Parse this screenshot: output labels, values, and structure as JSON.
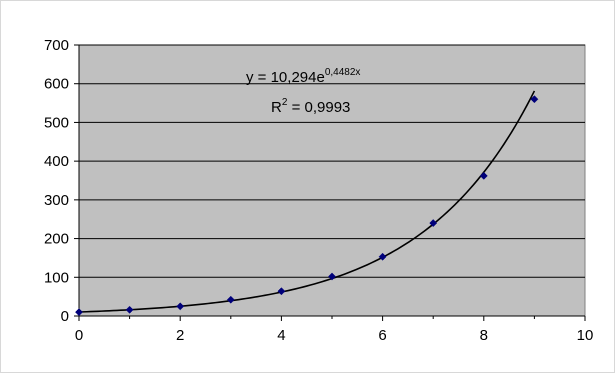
{
  "chart_data": {
    "type": "scatter",
    "title": "",
    "xlabel": "",
    "ylabel": "",
    "xlim": [
      0,
      10
    ],
    "ylim": [
      0,
      700
    ],
    "x_ticks": [
      "0",
      "2",
      "4",
      "6",
      "8",
      "10"
    ],
    "y_ticks": [
      "0",
      "100",
      "200",
      "300",
      "400",
      "500",
      "600",
      "700"
    ],
    "grid": "horizontal",
    "plot_background": "#c0c0c0",
    "series": [
      {
        "x": [
          0,
          1,
          2,
          3,
          4,
          5,
          6,
          7,
          8,
          9
        ],
        "y": [
          10,
          16,
          25,
          42,
          64,
          102,
          153,
          240,
          362,
          560
        ],
        "marker": "diamond",
        "color": "#00007a"
      }
    ],
    "trendline": {
      "type": "exponential",
      "a": 10.294,
      "b": 0.4482,
      "x_range": [
        0,
        9
      ],
      "color": "#000000"
    },
    "annotations": {
      "equation_base": "y = 10,294e",
      "equation_exponent": "0,4482x",
      "r2_prefix": "R",
      "r2_exponent": "2",
      "r2_value": " = 0,9993"
    }
  }
}
